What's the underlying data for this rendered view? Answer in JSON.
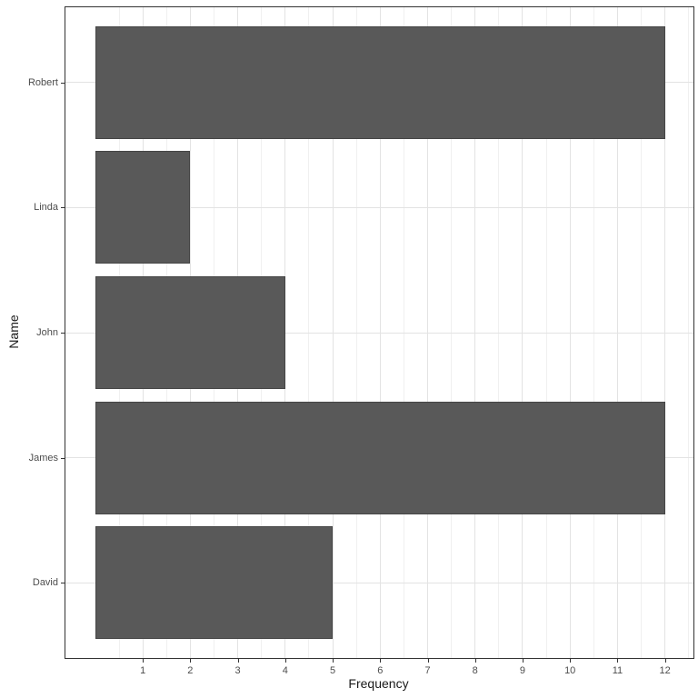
{
  "chart_data": {
    "type": "bar",
    "orientation": "horizontal",
    "title": "",
    "xlabel": "Frequency",
    "ylabel": "Name",
    "categories": [
      "Robert",
      "Linda",
      "John",
      "James",
      "David"
    ],
    "values": [
      12,
      2,
      4,
      12,
      5
    ],
    "xlim": [
      0,
      12.6
    ],
    "x_major_ticks": [
      1,
      2,
      3,
      4,
      5,
      6,
      7,
      8,
      9,
      10,
      11,
      12
    ],
    "x_minor_tick_step": 0.5,
    "bar_width_fraction": 0.9,
    "grid": true,
    "legend": false,
    "colors": {
      "bar_fill": "#595959",
      "bar_border": "#454545",
      "panel_border": "#333333",
      "grid_major": "#e3e3e3",
      "grid_minor": "#f0f0f0",
      "tick_mark": "#333333",
      "tick_label": "#4d4d4d",
      "axis_title": "#1a1a1a",
      "background": "#ffffff"
    }
  }
}
